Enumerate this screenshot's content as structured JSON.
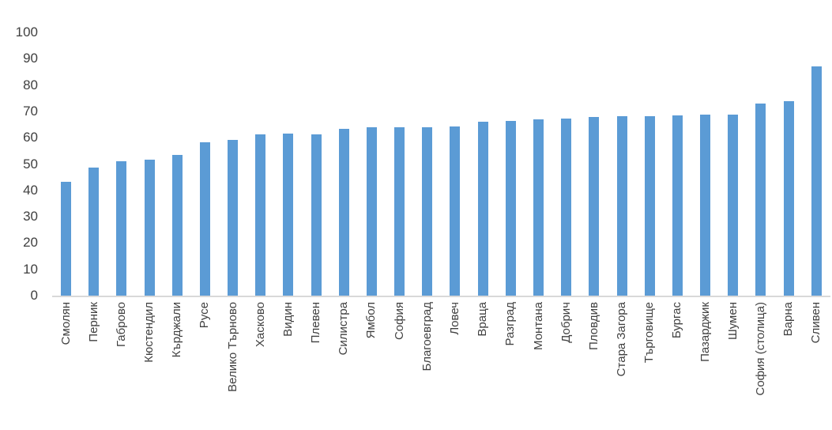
{
  "chart_data": {
    "type": "bar",
    "title": "",
    "xlabel": "",
    "ylabel": "",
    "categories": [
      "Смолян",
      "Перник",
      "Габрово",
      "Кюстендил",
      "Кърджали",
      "Русе",
      "Велико Търново",
      "Хасково",
      "Видин",
      "Плевен",
      "Силистра",
      "Ямбол",
      "София",
      "Благоевград",
      "Ловеч",
      "Враца",
      "Разград",
      "Монтана",
      "Добрич",
      "Пловдив",
      "Стара Загора",
      "Търговище",
      "Бургас",
      "Пазарджик",
      "Шумен",
      "София (столица)",
      "Варна",
      "Сливен"
    ],
    "values": [
      43.3,
      48.7,
      51.2,
      51.7,
      53.5,
      58.2,
      59.2,
      61.2,
      61.5,
      61.4,
      63.3,
      64.1,
      64.0,
      63.9,
      64.3,
      66.1,
      66.4,
      67.0,
      67.3,
      68.0,
      68.3,
      68.3,
      68.4,
      68.7,
      68.9,
      73.0,
      74.0,
      87.2
    ],
    "ylim": [
      0,
      100
    ],
    "yticks": [
      0,
      10,
      20,
      30,
      40,
      50,
      60,
      70,
      80,
      90,
      100
    ],
    "grid": false,
    "legend": "none",
    "x_label_rotation_degrees": 90,
    "bar_color": "#5b9bd5",
    "axis_line_color": "#d9d9d9",
    "text_color": "#404040",
    "background_color": "#ffffff"
  }
}
